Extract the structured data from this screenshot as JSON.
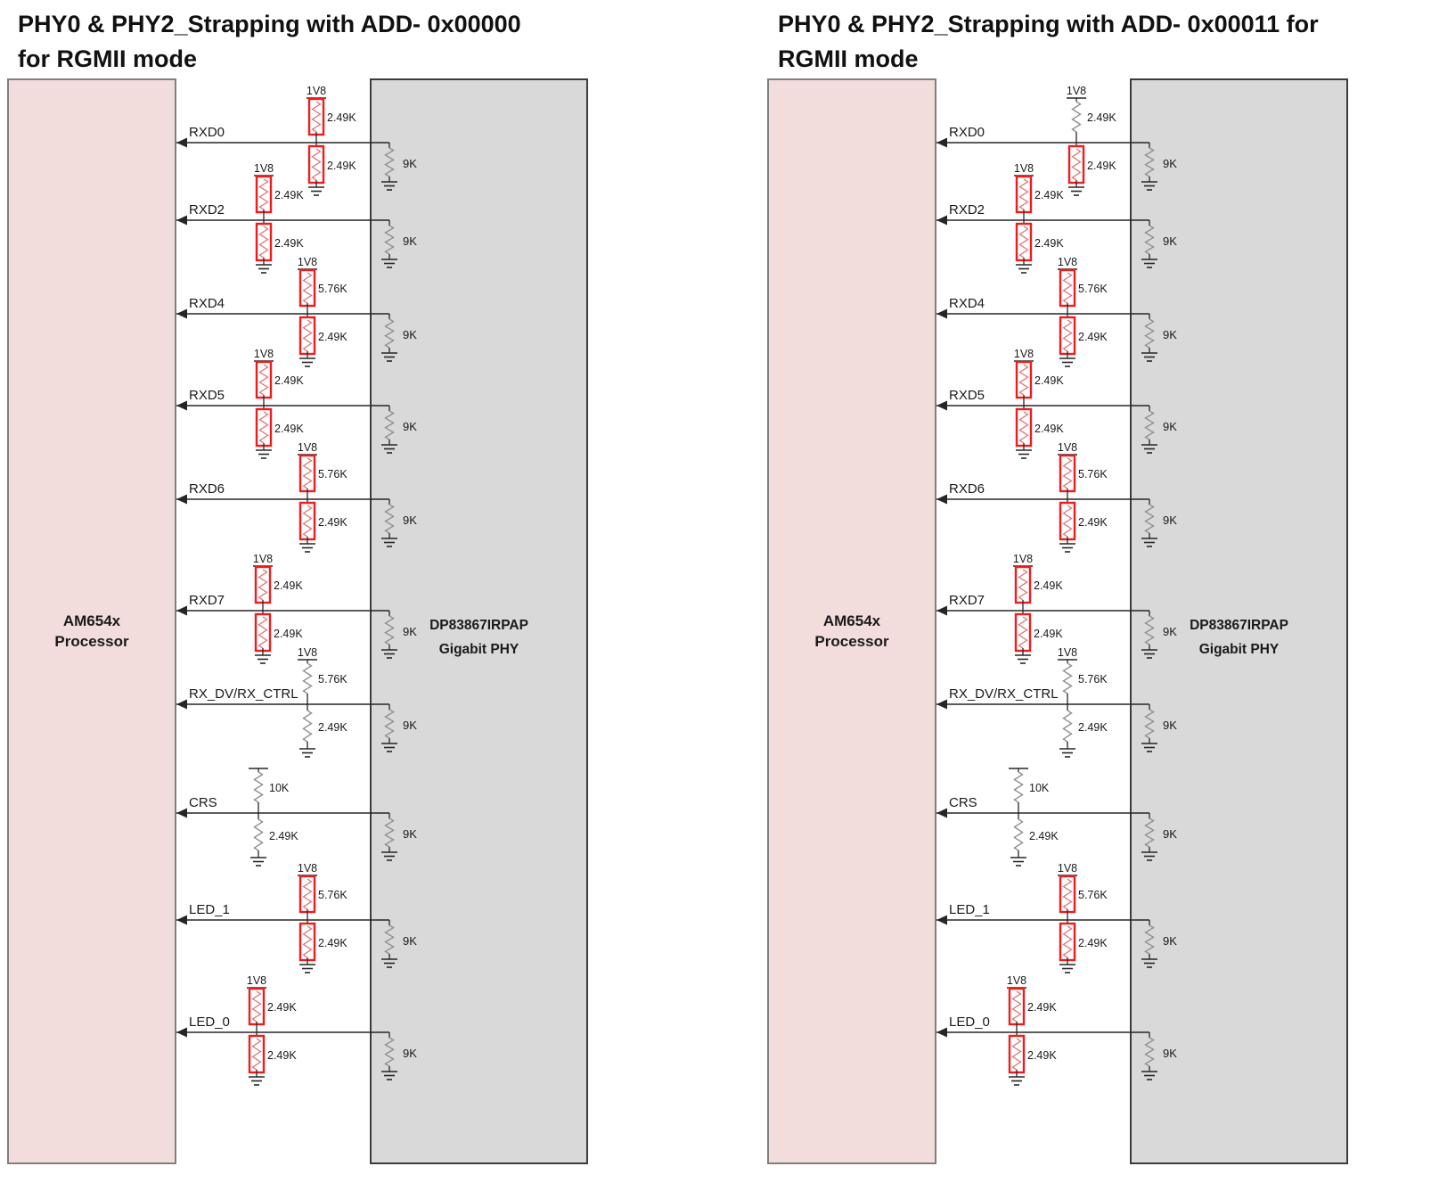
{
  "colors": {
    "background": "#ffffff",
    "processor_fill": "#f2dddc",
    "processor_border": "#7f7f7f",
    "phy_fill": "#d9d9d9",
    "phy_border": "#3c3c3c",
    "wire": "#262626",
    "resistor_plain": "#8f8f8f",
    "resistor_highlight": "#ee1c1c",
    "resistor_highlight_zigzag": "#d97070",
    "text": "#1a1a1a"
  },
  "panels": [
    {
      "title_lines": [
        "PHY0 & PHY2_Strapping with ADD- 0x00000",
        "for RGMII mode"
      ],
      "processor_label_lines": [
        "AM654x",
        "Processor"
      ],
      "phy_label_lines": [
        "DP83867IRPAP",
        "Gigabit PHY"
      ],
      "supply_rail": "1V8",
      "signals": [
        {
          "name": "RXD0",
          "pullup": {
            "rail": "1V8",
            "value": "2.49K",
            "highlighted": true
          },
          "pulldown": {
            "value": "2.49K",
            "highlighted": true
          },
          "phy_resistor": {
            "value": "9K"
          }
        },
        {
          "name": "RXD2",
          "pullup": {
            "rail": "1V8",
            "value": "2.49K",
            "highlighted": true
          },
          "pulldown": {
            "value": "2.49K",
            "highlighted": true
          },
          "phy_resistor": {
            "value": "9K"
          }
        },
        {
          "name": "RXD4",
          "pullup": {
            "rail": "1V8",
            "value": "5.76K",
            "highlighted": true
          },
          "pulldown": {
            "value": "2.49K",
            "highlighted": true
          },
          "phy_resistor": {
            "value": "9K"
          }
        },
        {
          "name": "RXD5",
          "pullup": {
            "rail": "1V8",
            "value": "2.49K",
            "highlighted": true
          },
          "pulldown": {
            "value": "2.49K",
            "highlighted": true
          },
          "phy_resistor": {
            "value": "9K"
          }
        },
        {
          "name": "RXD6",
          "pullup": {
            "rail": "1V8",
            "value": "5.76K",
            "highlighted": true
          },
          "pulldown": {
            "value": "2.49K",
            "highlighted": true
          },
          "phy_resistor": {
            "value": "9K"
          }
        },
        {
          "name": "RXD7",
          "pullup": {
            "rail": "1V8",
            "value": "2.49K",
            "highlighted": true
          },
          "pulldown": {
            "value": "2.49K",
            "highlighted": true
          },
          "phy_resistor": {
            "value": "9K"
          }
        },
        {
          "name": "RX_DV/RX_CTRL",
          "pullup": {
            "rail": "1V8",
            "value": "5.76K",
            "highlighted": false
          },
          "pulldown": {
            "value": "2.49K",
            "highlighted": false
          },
          "phy_resistor": {
            "value": "9K"
          }
        },
        {
          "name": "CRS",
          "pullup": {
            "rail": "",
            "value": "10K",
            "highlighted": false
          },
          "pulldown": {
            "value": "2.49K",
            "highlighted": false
          },
          "phy_resistor": {
            "value": "9K"
          }
        },
        {
          "name": "LED_1",
          "pullup": {
            "rail": "1V8",
            "value": "5.76K",
            "highlighted": true
          },
          "pulldown": {
            "value": "2.49K",
            "highlighted": true
          },
          "phy_resistor": {
            "value": "9K"
          }
        },
        {
          "name": "LED_0",
          "pullup": {
            "rail": "1V8",
            "value": "2.49K",
            "highlighted": true
          },
          "pulldown": {
            "value": "2.49K",
            "highlighted": true
          },
          "phy_resistor": {
            "value": "9K"
          }
        }
      ]
    },
    {
      "title_lines": [
        "PHY0 & PHY2_Strapping with ADD- 0x00011 for",
        "RGMII mode"
      ],
      "processor_label_lines": [
        "AM654x",
        "Processor"
      ],
      "phy_label_lines": [
        "DP83867IRPAP",
        "Gigabit PHY"
      ],
      "supply_rail": "1V8",
      "signals": [
        {
          "name": "RXD0",
          "pullup": {
            "rail": "1V8",
            "value": "2.49K",
            "highlighted": false
          },
          "pulldown": {
            "value": "2.49K",
            "highlighted": true
          },
          "phy_resistor": {
            "value": "9K"
          }
        },
        {
          "name": "RXD2",
          "pullup": {
            "rail": "1V8",
            "value": "2.49K",
            "highlighted": true
          },
          "pulldown": {
            "value": "2.49K",
            "highlighted": true
          },
          "phy_resistor": {
            "value": "9K"
          }
        },
        {
          "name": "RXD4",
          "pullup": {
            "rail": "1V8",
            "value": "5.76K",
            "highlighted": true
          },
          "pulldown": {
            "value": "2.49K",
            "highlighted": true
          },
          "phy_resistor": {
            "value": "9K"
          }
        },
        {
          "name": "RXD5",
          "pullup": {
            "rail": "1V8",
            "value": "2.49K",
            "highlighted": true
          },
          "pulldown": {
            "value": "2.49K",
            "highlighted": true
          },
          "phy_resistor": {
            "value": "9K"
          }
        },
        {
          "name": "RXD6",
          "pullup": {
            "rail": "1V8",
            "value": "5.76K",
            "highlighted": true
          },
          "pulldown": {
            "value": "2.49K",
            "highlighted": true
          },
          "phy_resistor": {
            "value": "9K"
          }
        },
        {
          "name": "RXD7",
          "pullup": {
            "rail": "1V8",
            "value": "2.49K",
            "highlighted": true
          },
          "pulldown": {
            "value": "2.49K",
            "highlighted": true
          },
          "phy_resistor": {
            "value": "9K"
          }
        },
        {
          "name": "RX_DV/RX_CTRL",
          "pullup": {
            "rail": "1V8",
            "value": "5.76K",
            "highlighted": false
          },
          "pulldown": {
            "value": "2.49K",
            "highlighted": false
          },
          "phy_resistor": {
            "value": "9K"
          }
        },
        {
          "name": "CRS",
          "pullup": {
            "rail": "",
            "value": "10K",
            "highlighted": false
          },
          "pulldown": {
            "value": "2.49K",
            "highlighted": false
          },
          "phy_resistor": {
            "value": "9K"
          }
        },
        {
          "name": "LED_1",
          "pullup": {
            "rail": "1V8",
            "value": "5.76K",
            "highlighted": true
          },
          "pulldown": {
            "value": "2.49K",
            "highlighted": true
          },
          "phy_resistor": {
            "value": "9K"
          }
        },
        {
          "name": "LED_0",
          "pullup": {
            "rail": "1V8",
            "value": "2.49K",
            "highlighted": true
          },
          "pulldown": {
            "value": "2.49K",
            "highlighted": true
          },
          "phy_resistor": {
            "value": "9K"
          }
        }
      ]
    }
  ]
}
